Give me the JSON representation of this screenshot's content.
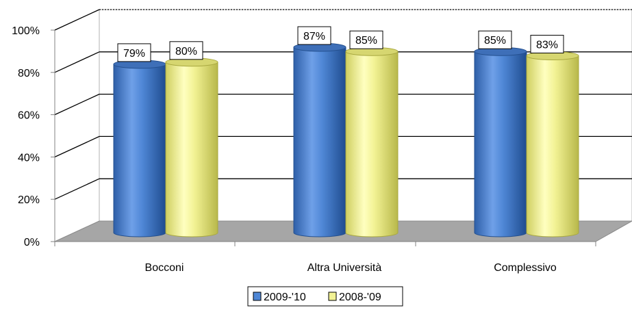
{
  "chart_data": {
    "type": "bar",
    "categories": [
      "Bocconi",
      "Altra Università",
      "Complessivo"
    ],
    "series": [
      {
        "name": "2009-'10",
        "values": [
          79,
          87,
          85
        ],
        "color": "#4F87D6"
      },
      {
        "name": "2008-'09",
        "values": [
          80,
          85,
          83
        ],
        "color": "#F2F294"
      }
    ],
    "data_labels": [
      [
        "79%",
        "87%",
        "85%"
      ],
      [
        "80%",
        "85%",
        "83%"
      ]
    ],
    "y_ticks": [
      "0%",
      "20%",
      "40%",
      "60%",
      "80%",
      "100%"
    ],
    "ylim": [
      0,
      100
    ],
    "grid": true,
    "legend_position": "bottom",
    "style": "3d-cylinder"
  }
}
